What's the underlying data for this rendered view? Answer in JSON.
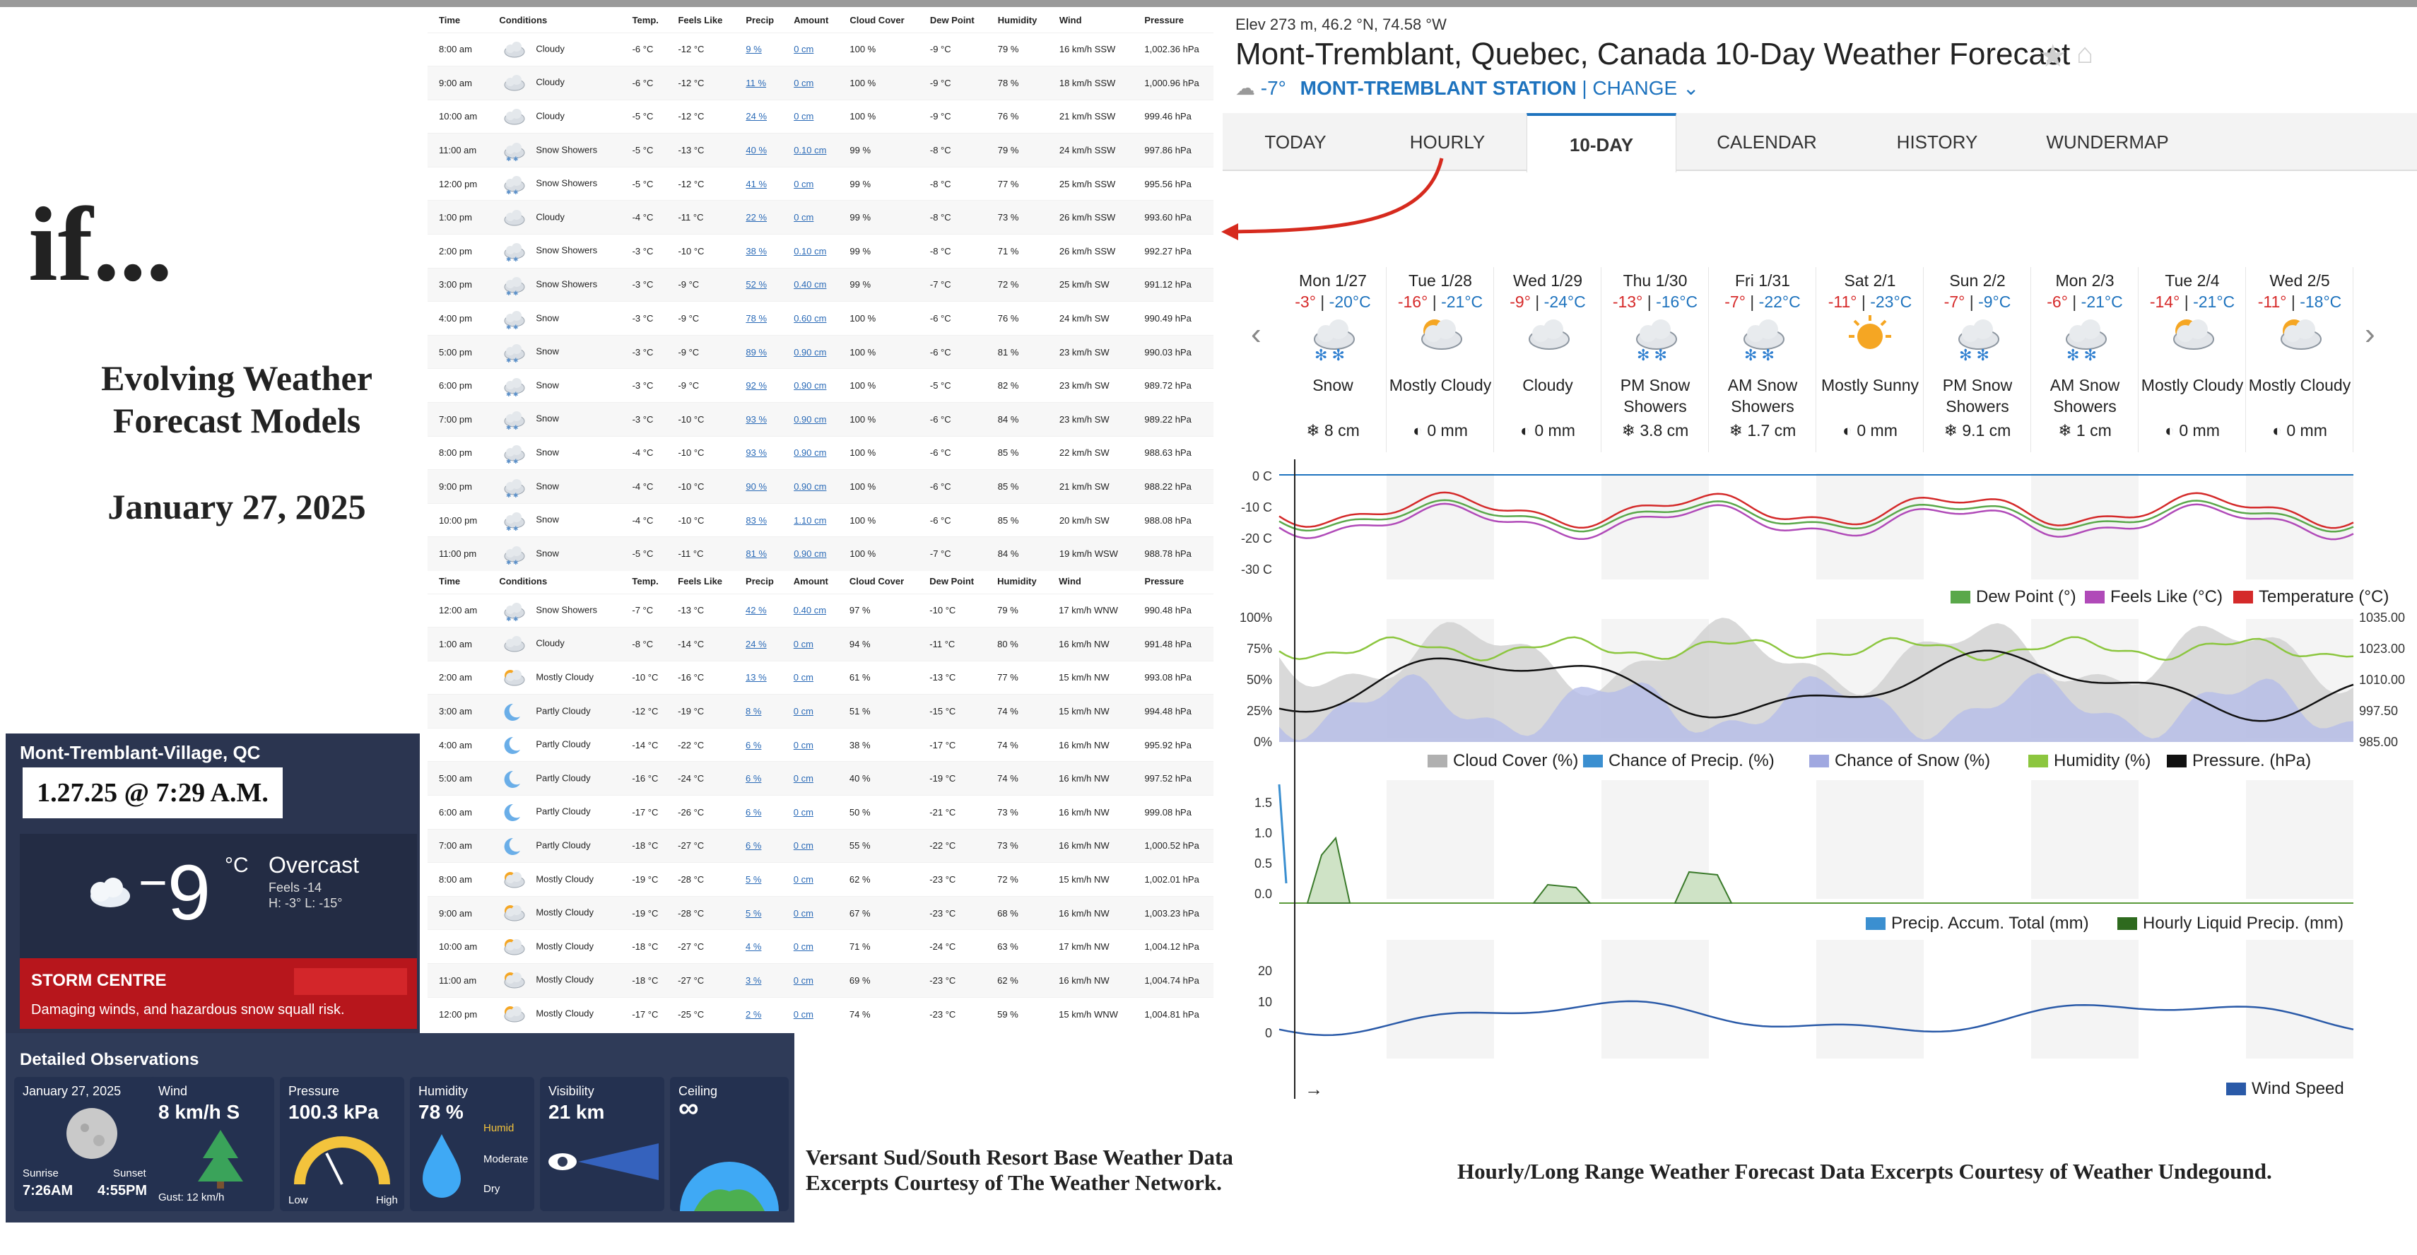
{
  "slide": {
    "title": "if...",
    "subtitle": "Evolving Weather Forecast Models",
    "date": "January 27, 2025",
    "caption_left": "Versant Sud/South Resort Base Weather Data Excerpts Courtesy of The Weather Network.",
    "caption_right": "Hourly/Long Range Weather Forecast Data Excerpts Courtesy of Weather Undegound."
  },
  "hourly_table": {
    "columns": [
      "Time",
      "Conditions",
      "Temp.",
      "Feels Like",
      "Precip",
      "Amount",
      "Cloud Cover",
      "Dew Point",
      "Humidity",
      "Wind",
      "Pressure"
    ],
    "day1": [
      [
        "8:00 am",
        "Cloudy",
        "-6 °C",
        "-12 °C",
        "9 %",
        "0 cm",
        "100 %",
        "-9 °C",
        "79 %",
        "16 km/h SSW",
        "1,002.36 hPa"
      ],
      [
        "9:00 am",
        "Cloudy",
        "-6 °C",
        "-12 °C",
        "11 %",
        "0 cm",
        "100 %",
        "-9 °C",
        "78 %",
        "18 km/h SSW",
        "1,000.96 hPa"
      ],
      [
        "10:00 am",
        "Cloudy",
        "-5 °C",
        "-12 °C",
        "24 %",
        "0 cm",
        "100 %",
        "-9 °C",
        "76 %",
        "21 km/h SSW",
        "999.46 hPa"
      ],
      [
        "11:00 am",
        "Snow Showers",
        "-5 °C",
        "-13 °C",
        "40 %",
        "0.10 cm",
        "99 %",
        "-8 °C",
        "79 %",
        "24 km/h SSW",
        "997.86 hPa"
      ],
      [
        "12:00 pm",
        "Snow Showers",
        "-5 °C",
        "-12 °C",
        "41 %",
        "0 cm",
        "99 %",
        "-8 °C",
        "77 %",
        "25 km/h SSW",
        "995.56 hPa"
      ],
      [
        "1:00 pm",
        "Cloudy",
        "-4 °C",
        "-11 °C",
        "22 %",
        "0 cm",
        "99 %",
        "-8 °C",
        "73 %",
        "26 km/h SSW",
        "993.60 hPa"
      ],
      [
        "2:00 pm",
        "Snow Showers",
        "-3 °C",
        "-10 °C",
        "38 %",
        "0.10 cm",
        "99 %",
        "-8 °C",
        "71 %",
        "26 km/h SSW",
        "992.27 hPa"
      ],
      [
        "3:00 pm",
        "Snow Showers",
        "-3 °C",
        "-9 °C",
        "52 %",
        "0.40 cm",
        "99 %",
        "-7 °C",
        "72 %",
        "25 km/h SW",
        "991.12 hPa"
      ],
      [
        "4:00 pm",
        "Snow",
        "-3 °C",
        "-9 °C",
        "78 %",
        "0.60 cm",
        "100 %",
        "-6 °C",
        "76 %",
        "24 km/h SW",
        "990.49 hPa"
      ],
      [
        "5:00 pm",
        "Snow",
        "-3 °C",
        "-9 °C",
        "89 %",
        "0.90 cm",
        "100 %",
        "-6 °C",
        "81 %",
        "23 km/h SW",
        "990.03 hPa"
      ],
      [
        "6:00 pm",
        "Snow",
        "-3 °C",
        "-9 °C",
        "92 %",
        "0.90 cm",
        "100 %",
        "-5 °C",
        "82 %",
        "23 km/h SW",
        "989.72 hPa"
      ],
      [
        "7:00 pm",
        "Snow",
        "-3 °C",
        "-10 °C",
        "93 %",
        "0.90 cm",
        "100 %",
        "-6 °C",
        "84 %",
        "23 km/h SW",
        "989.22 hPa"
      ],
      [
        "8:00 pm",
        "Snow",
        "-4 °C",
        "-10 °C",
        "93 %",
        "0.90 cm",
        "100 %",
        "-6 °C",
        "85 %",
        "22 km/h SW",
        "988.63 hPa"
      ],
      [
        "9:00 pm",
        "Snow",
        "-4 °C",
        "-10 °C",
        "90 %",
        "0.90 cm",
        "100 %",
        "-6 °C",
        "85 %",
        "21 km/h SW",
        "988.22 hPa"
      ],
      [
        "10:00 pm",
        "Snow",
        "-4 °C",
        "-10 °C",
        "83 %",
        "1.10 cm",
        "100 %",
        "-6 °C",
        "85 %",
        "20 km/h SW",
        "988.08 hPa"
      ],
      [
        "11:00 pm",
        "Snow",
        "-5 °C",
        "-11 °C",
        "81 %",
        "0.90 cm",
        "100 %",
        "-7 °C",
        "84 %",
        "19 km/h WSW",
        "988.78 hPa"
      ]
    ],
    "day2": [
      [
        "12:00 am",
        "Snow Showers",
        "-7 °C",
        "-13 °C",
        "42 %",
        "0.40 cm",
        "97 %",
        "-10 °C",
        "79 %",
        "17 km/h WNW",
        "990.48 hPa"
      ],
      [
        "1:00 am",
        "Cloudy",
        "-8 °C",
        "-14 °C",
        "24 %",
        "0 cm",
        "94 %",
        "-11 °C",
        "80 %",
        "16 km/h NW",
        "991.48 hPa"
      ],
      [
        "2:00 am",
        "Mostly Cloudy",
        "-10 °C",
        "-16 °C",
        "13 %",
        "0 cm",
        "61 %",
        "-13 °C",
        "77 %",
        "15 km/h NW",
        "993.08 hPa"
      ],
      [
        "3:00 am",
        "Partly Cloudy",
        "-12 °C",
        "-19 °C",
        "8 %",
        "0 cm",
        "51 %",
        "-15 °C",
        "74 %",
        "15 km/h NW",
        "994.48 hPa"
      ],
      [
        "4:00 am",
        "Partly Cloudy",
        "-14 °C",
        "-22 °C",
        "6 %",
        "0 cm",
        "38 %",
        "-17 °C",
        "74 %",
        "16 km/h NW",
        "995.92 hPa"
      ],
      [
        "5:00 am",
        "Partly Cloudy",
        "-16 °C",
        "-24 °C",
        "6 %",
        "0 cm",
        "40 %",
        "-19 °C",
        "74 %",
        "16 km/h NW",
        "997.52 hPa"
      ],
      [
        "6:00 am",
        "Partly Cloudy",
        "-17 °C",
        "-26 °C",
        "6 %",
        "0 cm",
        "50 %",
        "-21 °C",
        "73 %",
        "16 km/h NW",
        "999.08 hPa"
      ],
      [
        "7:00 am",
        "Partly Cloudy",
        "-18 °C",
        "-27 °C",
        "6 %",
        "0 cm",
        "55 %",
        "-22 °C",
        "73 %",
        "16 km/h NW",
        "1,000.52 hPa"
      ],
      [
        "8:00 am",
        "Mostly Cloudy",
        "-19 °C",
        "-28 °C",
        "5 %",
        "0 cm",
        "62 %",
        "-23 °C",
        "72 %",
        "15 km/h NW",
        "1,002.01 hPa"
      ],
      [
        "9:00 am",
        "Mostly Cloudy",
        "-19 °C",
        "-28 °C",
        "5 %",
        "0 cm",
        "67 %",
        "-23 °C",
        "68 %",
        "16 km/h NW",
        "1,003.23 hPa"
      ],
      [
        "10:00 am",
        "Mostly Cloudy",
        "-18 °C",
        "-27 °C",
        "4 %",
        "0 cm",
        "71 %",
        "-24 °C",
        "63 %",
        "17 km/h NW",
        "1,004.12 hPa"
      ],
      [
        "11:00 am",
        "Mostly Cloudy",
        "-18 °C",
        "-27 °C",
        "3 %",
        "0 cm",
        "69 %",
        "-23 °C",
        "62 %",
        "16 km/h NW",
        "1,004.74 hPa"
      ],
      [
        "12:00 pm",
        "Mostly Cloudy",
        "-17 °C",
        "-25 °C",
        "2 %",
        "0 cm",
        "74 %",
        "-23 °C",
        "59 %",
        "15 km/h WNW",
        "1,004.81 hPa"
      ]
    ]
  },
  "twn": {
    "location": "Mont-Tremblant-Village, QC",
    "timestamp": "1.27.25 @ 7:29 A.M.",
    "temp": "-9",
    "unit": "°C",
    "condition": "Overcast",
    "feels": "Feels -14",
    "highlow": "H: -3°  L: -15°",
    "storm_title": "STORM CENTRE",
    "storm_text": "Damaging winds, and hazardous snow squall risk.",
    "obs_title": "Detailed Observations",
    "obs": {
      "date": "January 27, 2025",
      "sunrise_label": "Sunrise",
      "sunrise": "7:26AM",
      "sunset_label": "Sunset",
      "sunset": "4:55PM",
      "wind_label": "Wind",
      "wind": "8 km/h S",
      "gust": "Gust: 12 km/h",
      "pressure_label": "Pressure",
      "pressure": "100.3 kPa",
      "pressure_low": "Low",
      "pressure_high": "High",
      "humidity_label": "Humidity",
      "humidity": "78 %",
      "humid_levels": [
        "Humid",
        "Moderate",
        "Dry"
      ],
      "visibility_label": "Visibility",
      "visibility": "21 km",
      "ceiling_label": "Ceiling",
      "ceiling": "∞"
    }
  },
  "wu": {
    "elev": "Elev 273 m, 46.2 °N, 74.58 °W",
    "title": "Mont-Tremblant, Quebec, Canada 10-Day Weather Forecast",
    "current_temp": "-7°",
    "station": "MONT-TREMBLANT STATION",
    "change": "| CHANGE ⌄",
    "tabs": [
      "TODAY",
      "HOURLY",
      "10-DAY",
      "CALENDAR",
      "HISTORY",
      "WUNDERMAP"
    ],
    "days": [
      {
        "d": "Mon 1/27",
        "hi": "-3°",
        "lo": "-20°C",
        "cond": "Snow",
        "amt": "8 cm",
        "icon": "snow"
      },
      {
        "d": "Tue 1/28",
        "hi": "-16°",
        "lo": "-21°C",
        "cond": "Mostly Cloudy",
        "amt": "0 mm",
        "icon": "pcloudy"
      },
      {
        "d": "Wed 1/29",
        "hi": "-9°",
        "lo": "-24°C",
        "cond": "Cloudy",
        "amt": "0 mm",
        "icon": "cloudy"
      },
      {
        "d": "Thu 1/30",
        "hi": "-13°",
        "lo": "-16°C",
        "cond": "PM Snow Showers",
        "amt": "3.8 cm",
        "icon": "snow"
      },
      {
        "d": "Fri 1/31",
        "hi": "-7°",
        "lo": "-22°C",
        "cond": "AM Snow Showers",
        "amt": "1.7 cm",
        "icon": "snow"
      },
      {
        "d": "Sat 2/1",
        "hi": "-11°",
        "lo": "-23°C",
        "cond": "Mostly Sunny",
        "amt": "0 mm",
        "icon": "sunny"
      },
      {
        "d": "Sun 2/2",
        "hi": "-7°",
        "lo": "-9°C",
        "cond": "PM Snow Showers",
        "amt": "9.1 cm",
        "icon": "snow"
      },
      {
        "d": "Mon 2/3",
        "hi": "-6°",
        "lo": "-21°C",
        "cond": "AM Snow Showers",
        "amt": "1 cm",
        "icon": "snow"
      },
      {
        "d": "Tue 2/4",
        "hi": "-14°",
        "lo": "-21°C",
        "cond": "Mostly Cloudy",
        "amt": "0 mm",
        "icon": "pcloudy"
      },
      {
        "d": "Wed 2/5",
        "hi": "-11°",
        "lo": "-18°C",
        "cond": "Mostly Cloudy",
        "amt": "0 mm",
        "icon": "pcloudy"
      }
    ],
    "temp_axis": [
      "0 C",
      "-10 C",
      "-20 C",
      "-30 C"
    ],
    "temp_legend": [
      "Dew Point (°)",
      "Feels Like (°C)",
      "Temperature (°C)"
    ],
    "pct_axis": [
      "100%",
      "75%",
      "50%",
      "25%",
      "0%"
    ],
    "press_axis": [
      "1035.00",
      "1023.00",
      "1010.00",
      "997.50",
      "985.00"
    ],
    "pct_legend": [
      "Cloud Cover (%)",
      "Chance of Precip. (%)",
      "Chance of Snow (%)",
      "Humidity (%)",
      "Pressure. (hPa)"
    ],
    "precip_axis": [
      "1.5",
      "1.0",
      "0.5",
      "0.0"
    ],
    "precip_legend": [
      "Precip. Accum. Total (mm)",
      "Hourly Liquid Precip. (mm)"
    ],
    "wind_axis": [
      "20",
      "10",
      "0"
    ],
    "wind_legend": [
      "Wind Speed"
    ]
  },
  "colors": {
    "temperature": "#d42a2a",
    "feels_like": "#b04ab8",
    "dew_point": "#5aa84a",
    "cloud_cover": "#b0b0b0",
    "precip": "#3b8fd0",
    "snow": "#a0a8e0",
    "humidity": "#8cc63f",
    "pressure": "#111111",
    "wind": "#2a5aa8",
    "twn_bg": "#2b3550",
    "storm_red": "#b7161c",
    "wu_blue": "#1e73be"
  }
}
